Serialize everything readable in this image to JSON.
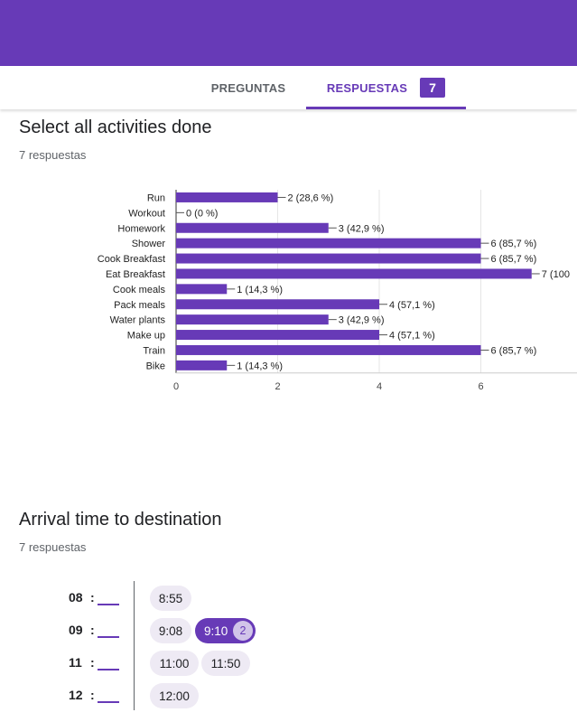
{
  "tabs": {
    "questions_label": "PREGUNTAS",
    "responses_label": "RESPUESTAS",
    "responses_count": "7"
  },
  "q1": {
    "title": "Select all activities done",
    "count": "7 respuestas"
  },
  "chart_data": {
    "type": "bar",
    "orientation": "horizontal",
    "categories": [
      "Run",
      "Workout",
      "Homework",
      "Shower",
      "Cook Breakfast",
      "Eat Breakfast",
      "Cook meals",
      "Pack meals",
      "Water plants",
      "Make up",
      "Train",
      "Bike"
    ],
    "values": [
      2,
      0,
      3,
      6,
      6,
      7,
      1,
      4,
      3,
      4,
      6,
      1
    ],
    "data_labels": [
      "2 (28,6 %)",
      "0 (0 %)",
      "3 (42,9 %)",
      "6 (85,7 %)",
      "6 (85,7 %)",
      "7 (100",
      "1 (14,3 %)",
      "4 (57,1 %)",
      "3 (42,9 %)",
      "4 (57,1 %)",
      "6 (85,7 %)",
      "1 (14,3 %)"
    ],
    "x_ticks": [
      0,
      2,
      4,
      6
    ],
    "xlim": [
      0,
      7.8
    ],
    "grid": true,
    "bar_color": "#673ab7"
  },
  "q2": {
    "title": "Arrival time to destination",
    "count": "7 respuestas",
    "rows": [
      {
        "hour": "08",
        "times": [
          {
            "label": "8:55"
          }
        ]
      },
      {
        "hour": "09",
        "times": [
          {
            "label": "9:08"
          },
          {
            "label": "9:10",
            "count": "2",
            "selected": true
          }
        ]
      },
      {
        "hour": "11",
        "times": [
          {
            "label": "11:00"
          },
          {
            "label": "11:50"
          }
        ]
      },
      {
        "hour": "12",
        "times": [
          {
            "label": "12:00"
          }
        ]
      }
    ]
  },
  "colors": {
    "accent": "#673ab7",
    "chip_bg": "#eeeaf4"
  }
}
